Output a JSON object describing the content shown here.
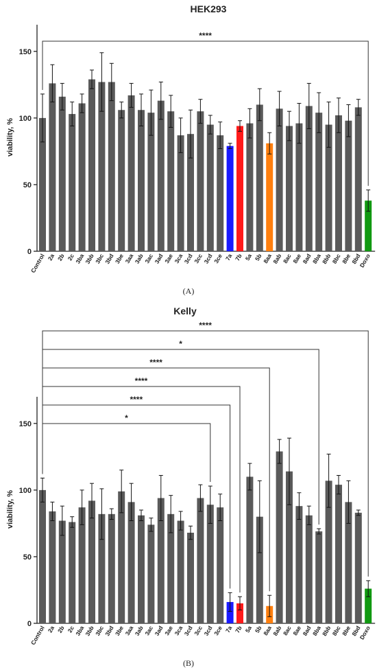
{
  "panels": [
    {
      "label": "(A)",
      "chart_data": {
        "type": "bar",
        "title": "HEK293",
        "xlabel": "",
        "ylabel": "viability, %",
        "ylim": [
          0,
          170
        ],
        "yticks": [
          0,
          50,
          100,
          150
        ],
        "grid": false,
        "categories": [
          "Control",
          "2a",
          "2b",
          "2c",
          "3ba",
          "3bb",
          "3bc",
          "3bd",
          "3be",
          "3aa",
          "3ab",
          "3ac",
          "3ad",
          "3ae",
          "3ca",
          "3cd",
          "3cc",
          "3cd",
          "3ce",
          "7a",
          "7b",
          "5a",
          "5b",
          "8aa",
          "8ab",
          "8ac",
          "8ae",
          "8ad",
          "8ba",
          "8bb",
          "8bc",
          "8be",
          "8bd",
          "Doxo"
        ],
        "values": [
          100,
          126,
          116,
          103,
          111,
          129,
          127,
          127,
          106,
          117,
          106,
          104,
          113,
          105,
          87,
          88,
          105,
          95,
          87,
          79,
          94,
          96,
          110,
          81,
          107,
          94,
          96,
          109,
          104,
          95,
          102,
          98,
          108,
          38
        ],
        "errors": [
          18,
          14,
          10,
          9,
          7,
          7,
          22,
          14,
          6,
          9,
          12,
          17,
          14,
          12,
          13,
          18,
          9,
          7,
          10,
          2,
          4,
          11,
          12,
          8,
          13,
          11,
          15,
          17,
          15,
          17,
          13,
          12,
          6,
          8
        ],
        "colors": [
          "#5a5a5a",
          "#5a5a5a",
          "#5a5a5a",
          "#5a5a5a",
          "#5a5a5a",
          "#5a5a5a",
          "#5a5a5a",
          "#5a5a5a",
          "#5a5a5a",
          "#5a5a5a",
          "#5a5a5a",
          "#5a5a5a",
          "#5a5a5a",
          "#5a5a5a",
          "#5a5a5a",
          "#5a5a5a",
          "#5a5a5a",
          "#5a5a5a",
          "#5a5a5a",
          "#1a1aff",
          "#ff1a1a",
          "#5a5a5a",
          "#5a5a5a",
          "#ff7f0e",
          "#5a5a5a",
          "#5a5a5a",
          "#5a5a5a",
          "#5a5a5a",
          "#5a5a5a",
          "#5a5a5a",
          "#5a5a5a",
          "#5a5a5a",
          "#5a5a5a",
          "#119911"
        ],
        "significance": [
          {
            "from": "Control",
            "to": "Doxo",
            "label": "****"
          }
        ]
      }
    },
    {
      "label": "(B)",
      "chart_data": {
        "type": "bar",
        "title": "Kelly",
        "xlabel": "",
        "ylabel": "viability, %",
        "ylim": [
          0,
          170
        ],
        "yticks": [
          0,
          50,
          100,
          150
        ],
        "grid": false,
        "categories": [
          "Control",
          "2a",
          "2b",
          "2c",
          "3ba",
          "3bb",
          "3bc",
          "3bd",
          "3be",
          "3aa",
          "3ab",
          "3ac",
          "3ad",
          "3ae",
          "3ca",
          "3cd",
          "3cc",
          "3cd",
          "3ce",
          "7a",
          "7b",
          "5a",
          "5b",
          "8aa",
          "8ab",
          "8ac",
          "8ae",
          "8ad",
          "8ba",
          "8bb",
          "8bc",
          "8be",
          "8bd",
          "Doxo"
        ],
        "values": [
          100,
          84,
          77,
          76,
          87,
          92,
          82,
          82,
          99,
          91,
          81,
          74,
          94,
          82,
          77,
          68,
          94,
          89,
          87,
          16,
          15,
          110,
          80,
          13,
          129,
          114,
          88,
          81,
          69,
          107,
          104,
          91,
          83,
          26
        ],
        "errors": [
          9,
          7,
          11,
          4,
          13,
          13,
          19,
          4,
          16,
          14,
          4,
          5,
          17,
          14,
          7,
          5,
          10,
          14,
          10,
          7,
          5,
          10,
          27,
          8,
          9,
          25,
          10,
          7,
          2,
          20,
          7,
          16,
          2,
          6
        ],
        "colors": [
          "#5a5a5a",
          "#5a5a5a",
          "#5a5a5a",
          "#5a5a5a",
          "#5a5a5a",
          "#5a5a5a",
          "#5a5a5a",
          "#5a5a5a",
          "#5a5a5a",
          "#5a5a5a",
          "#5a5a5a",
          "#5a5a5a",
          "#5a5a5a",
          "#5a5a5a",
          "#5a5a5a",
          "#5a5a5a",
          "#5a5a5a",
          "#5a5a5a",
          "#5a5a5a",
          "#1a1aff",
          "#ff1a1a",
          "#5a5a5a",
          "#5a5a5a",
          "#ff7f0e",
          "#5a5a5a",
          "#5a5a5a",
          "#5a5a5a",
          "#5a5a5a",
          "#5a5a5a",
          "#5a5a5a",
          "#5a5a5a",
          "#5a5a5a",
          "#5a5a5a",
          "#119911"
        ],
        "significance": [
          {
            "from": "Control",
            "to": "Doxo",
            "label": "****"
          },
          {
            "from": "Control",
            "to": "8ba",
            "label": "*"
          },
          {
            "from": "Control",
            "to": "8aa",
            "label": "****"
          },
          {
            "from": "Control",
            "to": "7b",
            "label": "****"
          },
          {
            "from": "Control",
            "to": "7a",
            "label": "****"
          },
          {
            "from": "Control",
            "to": "3cd",
            "label": "*"
          }
        ]
      }
    }
  ]
}
